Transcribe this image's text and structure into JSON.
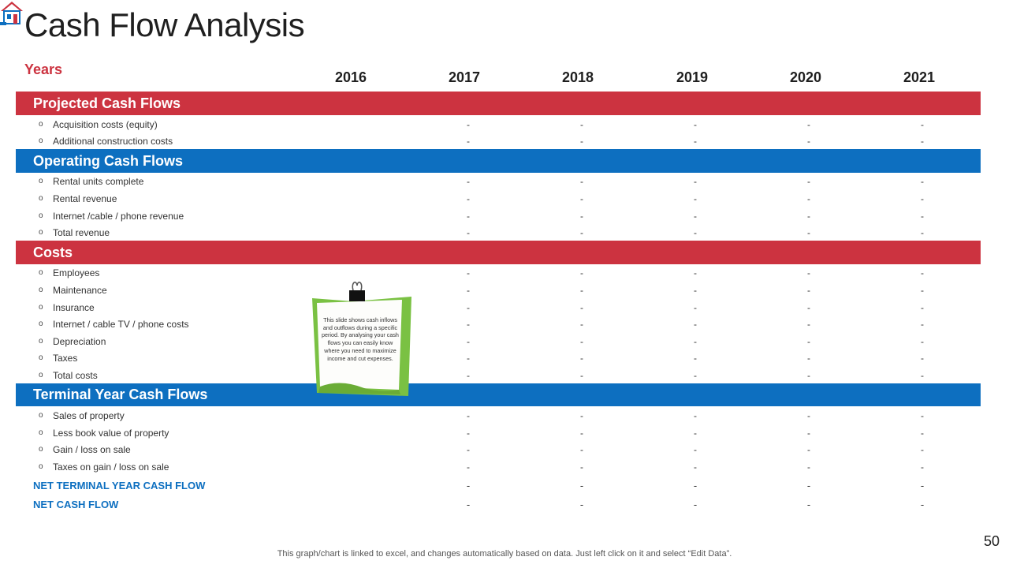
{
  "title": "Cash Flow Analysis",
  "years_label": "Years",
  "years": [
    "2016",
    "2017",
    "2018",
    "2019",
    "2020",
    "2021"
  ],
  "dash": "-",
  "colors": {
    "red": "#cc3340",
    "blue": "#0d6fc0",
    "note_green": "#7ac143"
  },
  "logo_icon": "house-icon",
  "sections": [
    {
      "title": "Projected Cash Flows",
      "color": "red",
      "items": [
        "Acquisition costs (equity)",
        "Additional construction costs"
      ]
    },
    {
      "title": "Operating Cash Flows",
      "color": "blue",
      "items": [
        "Rental units complete",
        "Rental revenue",
        "Internet /cable / phone revenue",
        "Total revenue"
      ]
    },
    {
      "title": "Costs",
      "color": "red",
      "items": [
        "Employees",
        "Maintenance",
        "Insurance",
        "Internet / cable TV / phone costs",
        "Depreciation",
        "Taxes",
        "Total costs"
      ]
    },
    {
      "title": "Terminal Year Cash Flows",
      "color": "blue",
      "items": [
        "Sales of property",
        "Less book value of property",
        "Gain / loss on sale",
        "Taxes on gain / loss on sale"
      ]
    }
  ],
  "net_rows": [
    "NET TERMINAL YEAR CASH FLOW",
    "NET CASH FLOW"
  ],
  "note": {
    "text": "This slide shows cash inflows and outflows during a specific period. By analysing your cash flows you can easily know where you need to maximize income and cut expenses."
  },
  "footer": "This graph/chart is linked to excel,  and changes automatically based on data. Just left click on it and select “Edit Data”.",
  "page_number": "50"
}
